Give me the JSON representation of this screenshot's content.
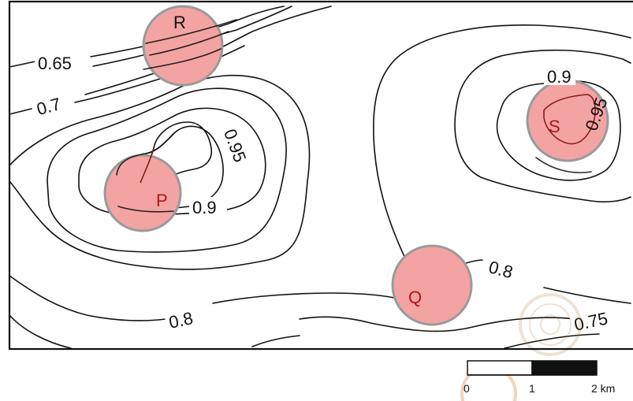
{
  "map": {
    "contour_labels": {
      "c065": "0.65",
      "c07": "0.7",
      "c095_left": "0.95",
      "c09_left": "0.9",
      "c08_right": "0.8",
      "c08_bottom": "0.8",
      "c075": "0.75",
      "c09_right": "0.9",
      "c095_right": "0.95"
    },
    "points": {
      "R": "R",
      "P": "P",
      "Q": "Q",
      "S": "S"
    },
    "point_style": {
      "fill": "#f4a3a3",
      "stroke": "#9a9a9a"
    },
    "scale_bar": {
      "tick_0": "0",
      "tick_1": "1",
      "tick_2": "2 km"
    }
  }
}
